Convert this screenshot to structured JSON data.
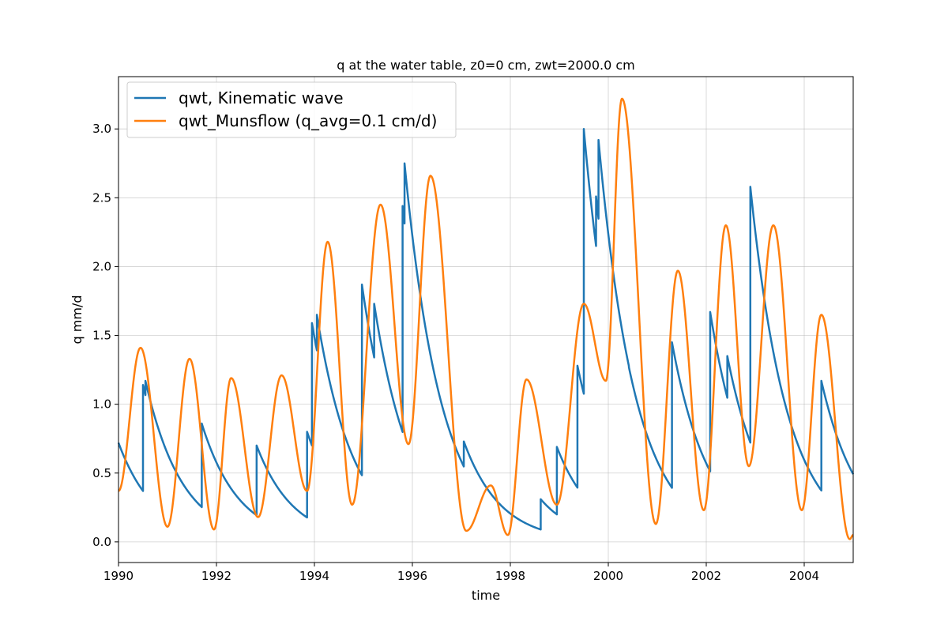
{
  "chart_data": {
    "type": "line",
    "title": "q at the water table, z0=0 cm, zwt=2000.0 cm",
    "xlabel": "time",
    "ylabel": "q mm/d",
    "xlim": [
      1990,
      2005
    ],
    "ylim": [
      -0.15,
      3.38
    ],
    "x_ticks": [
      1990,
      1992,
      1994,
      1996,
      1998,
      2000,
      2002,
      2004
    ],
    "y_ticks": [
      0.0,
      0.5,
      1.0,
      1.5,
      2.0,
      2.5,
      3.0
    ],
    "x_tick_labels": [
      "1990",
      "1992",
      "1994",
      "1996",
      "1998",
      "2000",
      "2002",
      "2004"
    ],
    "y_tick_labels": [
      "0.0",
      "0.5",
      "1.0",
      "1.5",
      "2.0",
      "2.5",
      "3.0"
    ],
    "grid": true,
    "legend_position": "upper-left",
    "series": [
      {
        "name": "qwt, Kinematic wave",
        "color": "#1f77b4",
        "tau": 0.75,
        "start_value": 0.72,
        "events": [
          [
            1990.5,
            1.14
          ],
          [
            1990.55,
            1.17
          ],
          [
            1991.7,
            0.86
          ],
          [
            1992.82,
            0.7
          ],
          [
            1993.85,
            0.8
          ],
          [
            1993.95,
            1.59
          ],
          [
            1994.05,
            1.65
          ],
          [
            1994.97,
            1.87
          ],
          [
            1995.22,
            1.73
          ],
          [
            1995.8,
            2.44
          ],
          [
            1995.84,
            2.75
          ],
          [
            1997.05,
            0.73
          ],
          [
            1998.62,
            0.31
          ],
          [
            1998.95,
            0.69
          ],
          [
            1999.37,
            1.28
          ],
          [
            1999.5,
            3.0
          ],
          [
            1999.75,
            2.51
          ],
          [
            1999.8,
            2.92
          ],
          [
            2000.42,
            1.27
          ],
          [
            2001.3,
            1.45
          ],
          [
            2002.08,
            1.67
          ],
          [
            2002.43,
            1.35
          ],
          [
            2002.9,
            2.58
          ],
          [
            2004.35,
            1.17
          ]
        ]
      },
      {
        "name": "qwt_Munsflow (q_avg=0.1 cm/d)",
        "color": "#ff7f0e",
        "points": [
          [
            1990.0,
            0.37
          ],
          [
            1990.45,
            1.41
          ],
          [
            1991.0,
            0.11
          ],
          [
            1991.45,
            1.33
          ],
          [
            1991.95,
            0.09
          ],
          [
            1992.3,
            1.19
          ],
          [
            1992.85,
            0.18
          ],
          [
            1993.33,
            1.21
          ],
          [
            1993.85,
            0.37
          ],
          [
            1994.27,
            2.18
          ],
          [
            1994.77,
            0.27
          ],
          [
            1995.35,
            2.45
          ],
          [
            1995.92,
            0.71
          ],
          [
            1996.37,
            2.66
          ],
          [
            1997.1,
            0.08
          ],
          [
            1997.6,
            0.41
          ],
          [
            1997.95,
            0.05
          ],
          [
            1998.33,
            1.18
          ],
          [
            1998.95,
            0.27
          ],
          [
            1999.5,
            1.73
          ],
          [
            1999.95,
            1.17
          ],
          [
            2000.28,
            3.22
          ],
          [
            2000.97,
            0.13
          ],
          [
            2001.42,
            1.97
          ],
          [
            2001.95,
            0.23
          ],
          [
            2002.4,
            2.3
          ],
          [
            2002.87,
            0.55
          ],
          [
            2003.37,
            2.3
          ],
          [
            2003.95,
            0.23
          ],
          [
            2004.35,
            1.65
          ],
          [
            2004.93,
            0.02
          ],
          [
            2005.0,
            0.05
          ]
        ]
      }
    ]
  }
}
